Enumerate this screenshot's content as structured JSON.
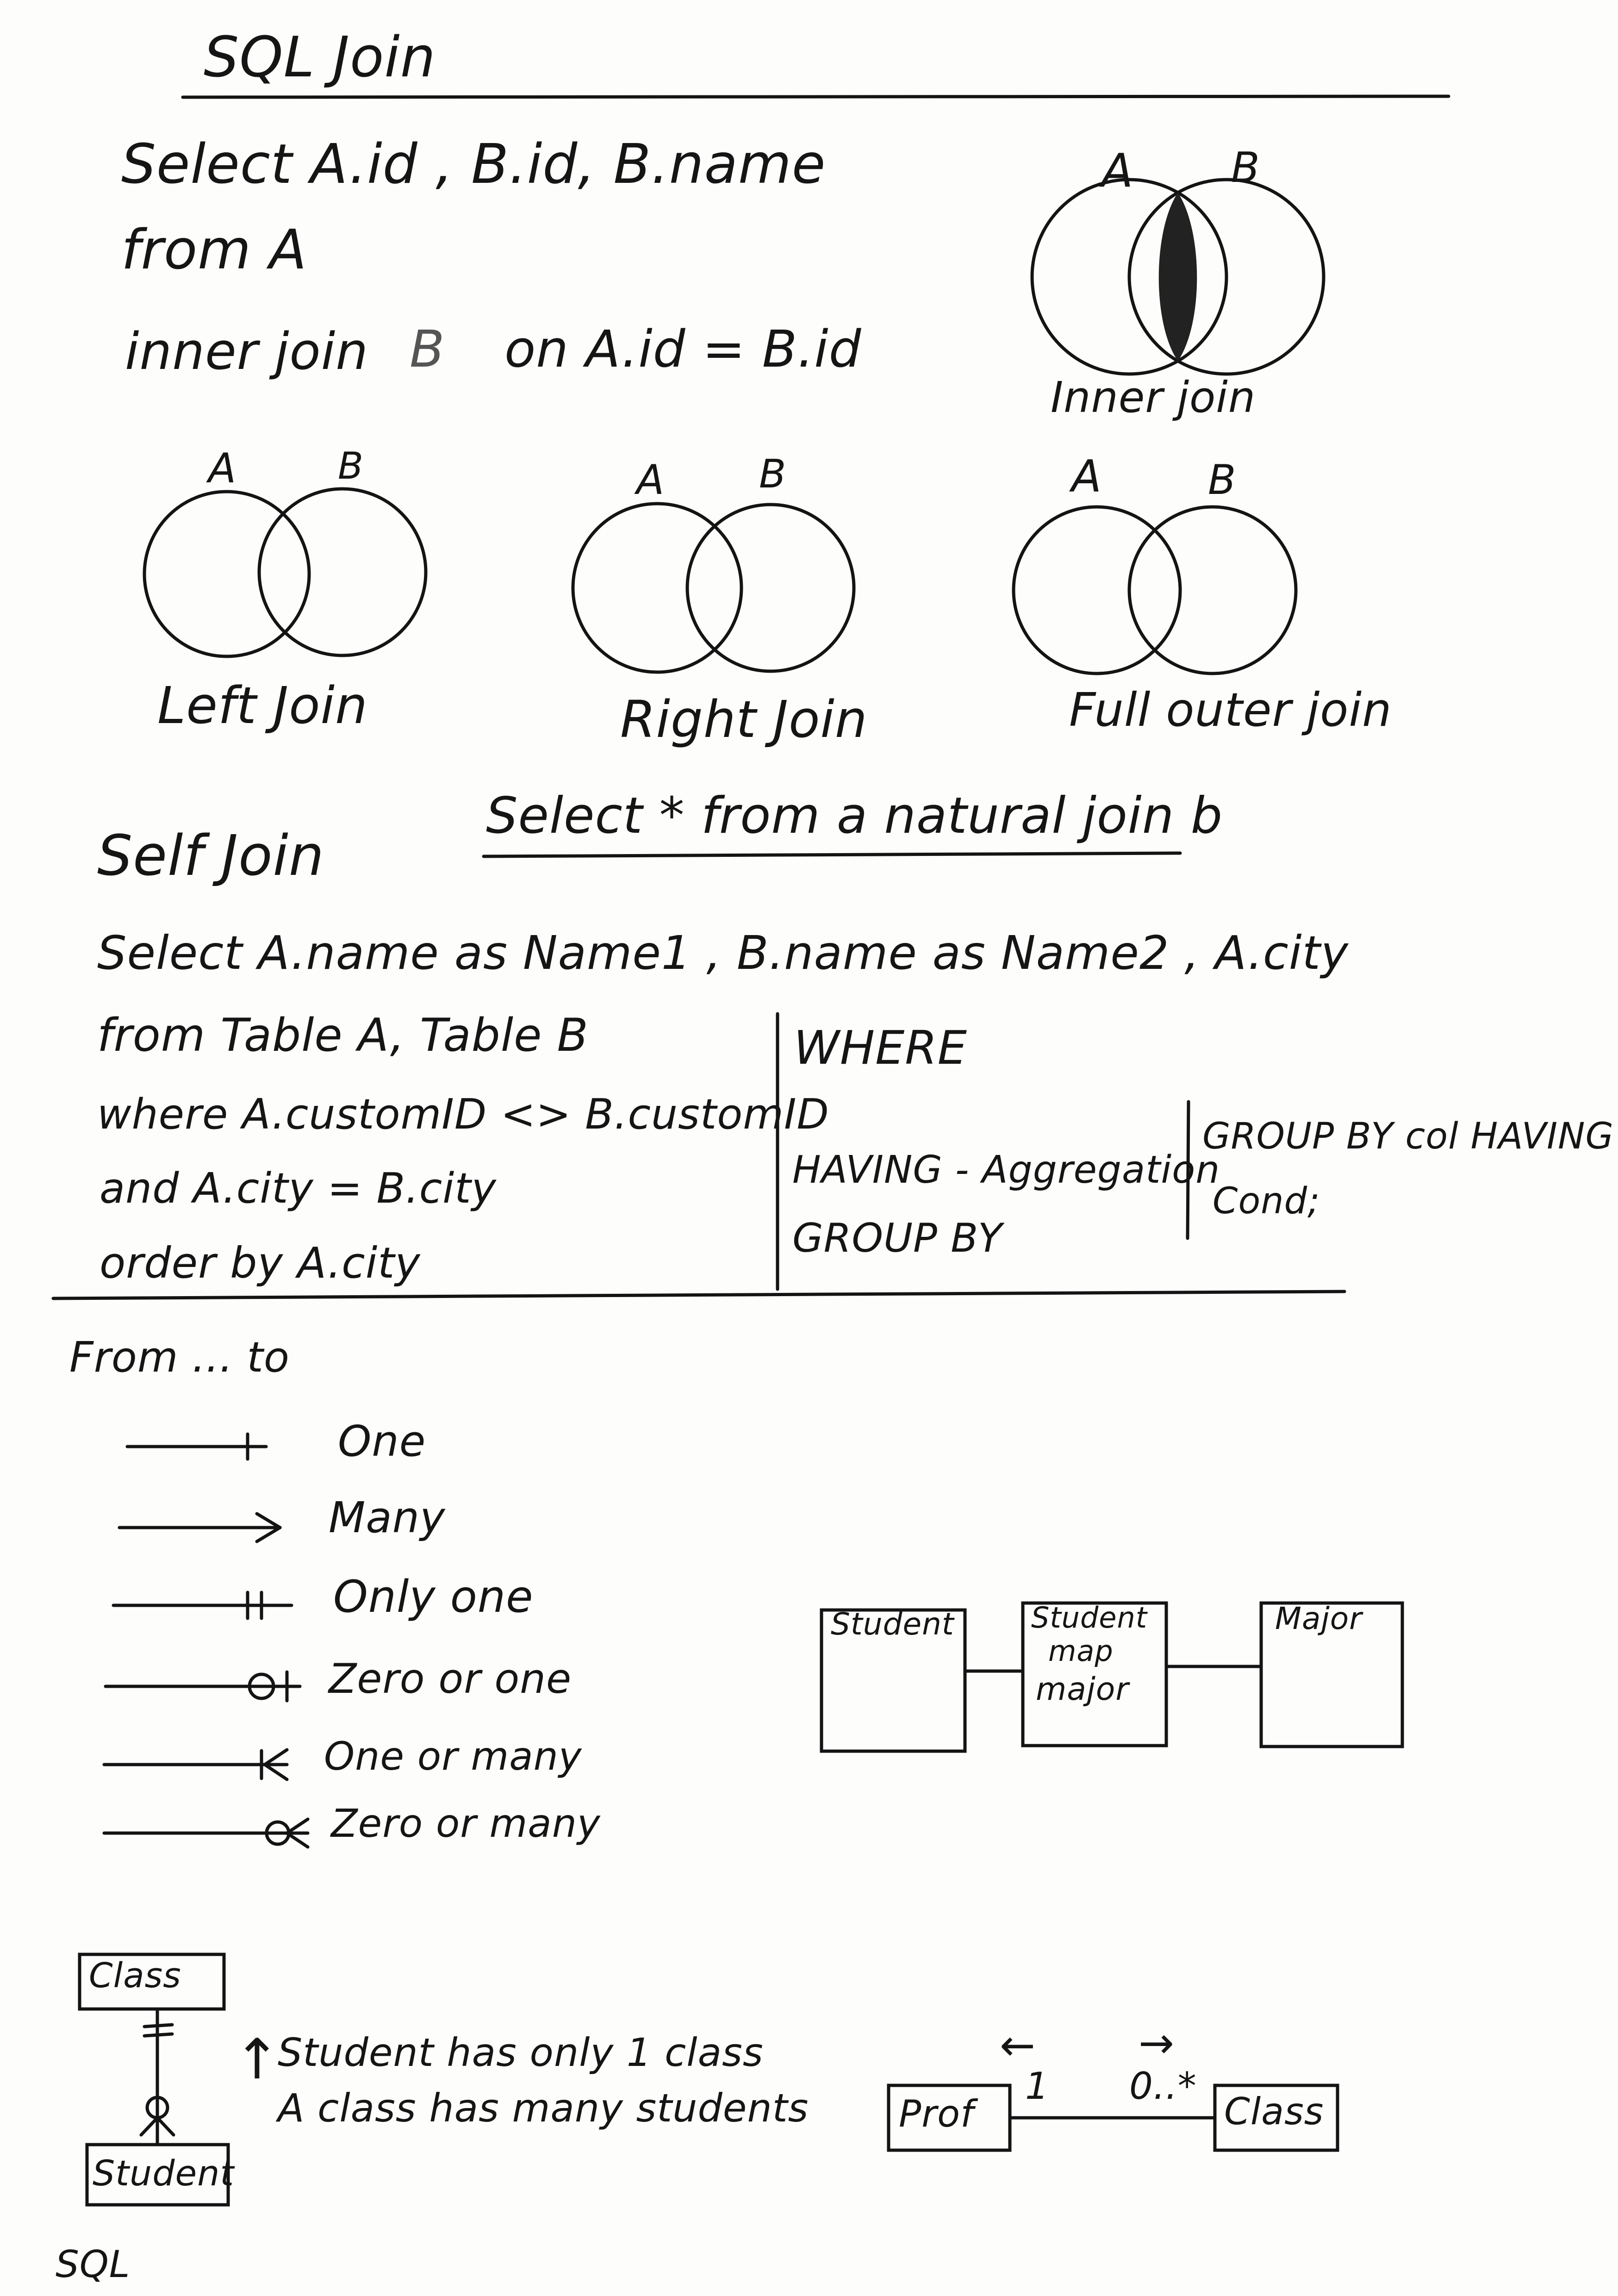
{
  "title": "SQL Join",
  "inner_query": {
    "line1": "Select   A.id , B.id, B.name",
    "line2": "from   A",
    "line3_a": "inner  join",
    "line3_b": "B",
    "line3_c": "on   A.id = B.id"
  },
  "venn": {
    "inner": {
      "label": "Inner join",
      "a": "A",
      "b": "B"
    },
    "left": {
      "label": "Left  Join",
      "a": "A",
      "b": "B"
    },
    "right": {
      "label": "Right  Join",
      "a": "A",
      "b": "B"
    },
    "full": {
      "label": "Full  outer  join",
      "a": "A",
      "b": "B"
    }
  },
  "natural_join": "Select  *  from  a  natural  join  b",
  "self_join": {
    "heading": "Self  Join",
    "line1": "Select   A.name  as  Name1 ,  B.name  as  Name2 ,  A.city",
    "line2": "from   Table   A,  Table  B",
    "line3": "where    A.customID  <>  B.customID",
    "line4": "and     A.city = B.city",
    "line5": "order  by  A.city"
  },
  "where_having": {
    "where": "WHERE",
    "having": "HAVING  -  Aggregation",
    "group_by": "GROUP  BY",
    "group_having": "GROUP BY  col  HAVING",
    "cond": "Cond;"
  },
  "notation": {
    "heading": "From ...  to",
    "items": [
      "One",
      "Many",
      "Only  one",
      "Zero  or  one",
      "One  or  many",
      "Zero  or  many"
    ]
  },
  "mapping_diagram": {
    "student": "Student",
    "map_l1": "Student",
    "map_l2": "map",
    "map_l3": "major",
    "major": "Major"
  },
  "class_student": {
    "class": "Class",
    "student": "Student",
    "arrow": "↑",
    "note1": "Student  has  only  1  class",
    "note2": "A  class  has  many  students"
  },
  "prof_class": {
    "prof": "Prof",
    "class": "Class",
    "mult_left": "1",
    "mult_right": "0..*",
    "arrow_left": "←",
    "arrow_right": "→"
  },
  "footer": "SQL"
}
